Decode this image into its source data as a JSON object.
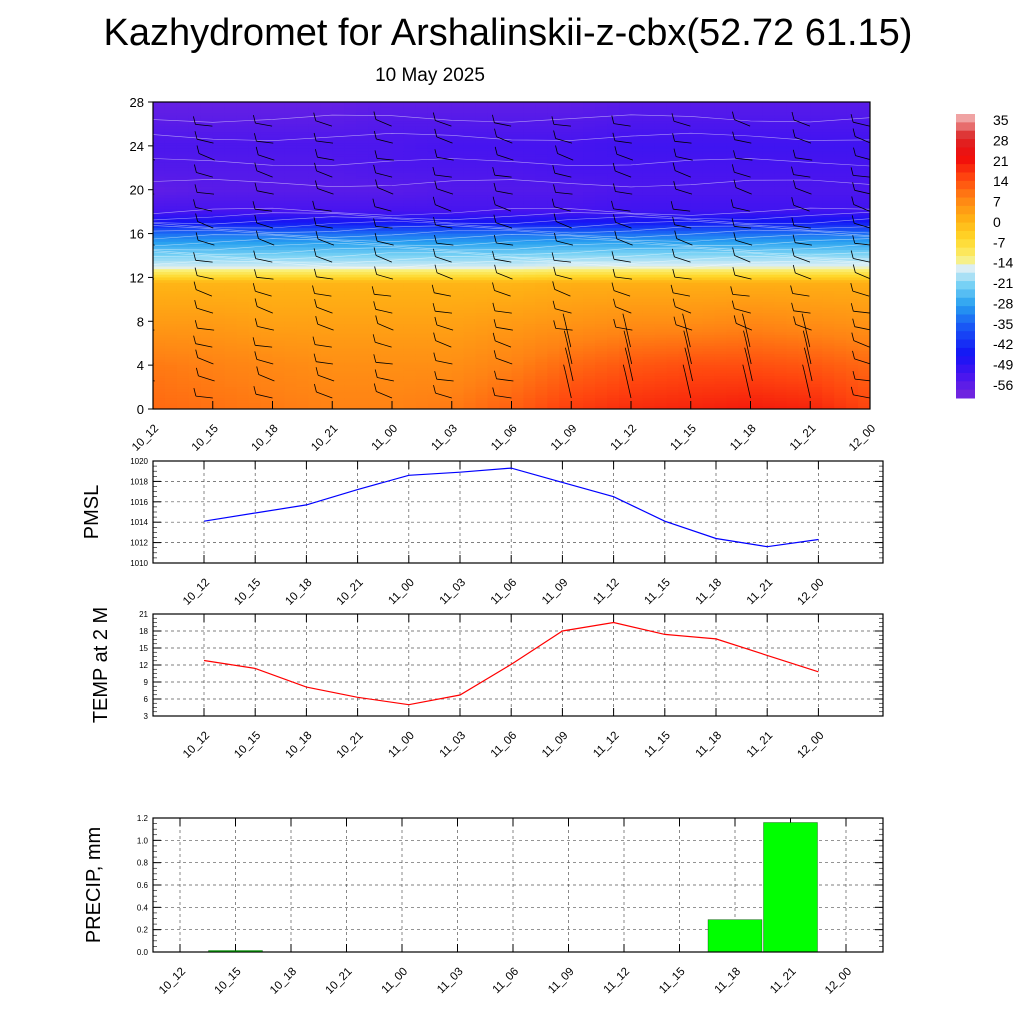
{
  "title": "Kazhydromet for Arshalinskii-z-cbx(52.72 61.15)",
  "subtitle": "10 May 2025",
  "time_labels": [
    "10_12",
    "10_15",
    "10_18",
    "10_21",
    "11_00",
    "11_03",
    "11_06",
    "11_09",
    "11_12",
    "11_15",
    "11_18",
    "11_21",
    "12_00"
  ],
  "chart_data": [
    {
      "type": "heatmap",
      "title": "",
      "xlabel": "",
      "ylabel": "",
      "x": [
        "10_12",
        "10_15",
        "10_18",
        "10_21",
        "11_00",
        "11_03",
        "11_06",
        "11_09",
        "11_12",
        "11_15",
        "11_18",
        "11_21",
        "12_00"
      ],
      "y_ticks": [
        0,
        4,
        8,
        12,
        16,
        20,
        24,
        28
      ],
      "ylim": [
        0,
        28
      ],
      "colorbar": {
        "labels": [
          "35",
          "28",
          "21",
          "14",
          "7",
          "0",
          "-7",
          "-14",
          "-21",
          "-28",
          "-35",
          "-42",
          "-49",
          "-56"
        ],
        "range": [
          -60,
          38
        ]
      },
      "temperature_profile": {
        "heights": [
          0,
          4,
          8,
          11.5,
          12,
          13,
          14,
          16,
          17,
          18,
          20,
          22,
          24,
          26,
          28
        ],
        "values": [
          [
            12,
            10,
            5,
            1,
            -5,
            -16,
            -21,
            -33,
            -45,
            -52,
            -56,
            -54,
            -53,
            -55,
            -57
          ],
          [
            11,
            9,
            5,
            1,
            -5,
            -16,
            -21,
            -33,
            -45,
            -52,
            -55,
            -54,
            -53,
            -55,
            -57
          ],
          [
            10,
            8,
            4,
            1,
            -5,
            -16,
            -21,
            -33,
            -45,
            -52,
            -55,
            -54,
            -53,
            -55,
            -57
          ],
          [
            9,
            7,
            4,
            1,
            -5,
            -16,
            -21,
            -33,
            -45,
            -52,
            -55,
            -54,
            -53,
            -55,
            -57
          ],
          [
            9,
            7,
            4,
            1,
            -5,
            -16,
            -21,
            -33,
            -45,
            -52,
            -55,
            -53,
            -53,
            -54,
            -56
          ],
          [
            10,
            7,
            4,
            1,
            -5,
            -16,
            -21,
            -33,
            -45,
            -52,
            -54,
            -53,
            -52,
            -54,
            -56
          ],
          [
            13,
            9,
            5,
            1,
            -5,
            -16,
            -21,
            -33,
            -45,
            -52,
            -54,
            -53,
            -52,
            -54,
            -56
          ],
          [
            17,
            12,
            6,
            2,
            -4,
            -15,
            -20,
            -33,
            -45,
            -52,
            -54,
            -52,
            -52,
            -54,
            -56
          ],
          [
            19,
            14,
            7,
            2,
            -4,
            -15,
            -20,
            -33,
            -45,
            -51,
            -53,
            -52,
            -51,
            -53,
            -55
          ],
          [
            20,
            15,
            7,
            2,
            -4,
            -15,
            -20,
            -33,
            -44,
            -51,
            -53,
            -52,
            -51,
            -53,
            -55
          ],
          [
            21,
            15,
            8,
            2,
            -4,
            -15,
            -20,
            -33,
            -44,
            -51,
            -53,
            -52,
            -51,
            -53,
            -55
          ],
          [
            20,
            14,
            7,
            2,
            -4,
            -15,
            -20,
            -33,
            -44,
            -51,
            -53,
            -52,
            -51,
            -53,
            -55
          ],
          [
            16,
            12,
            6,
            2,
            -4,
            -15,
            -20,
            -33,
            -44,
            -51,
            -53,
            -52,
            -51,
            -53,
            -55
          ]
        ]
      },
      "wind_barbs": true
    },
    {
      "type": "line",
      "title": "",
      "xlabel": "",
      "ylabel": "PMSL",
      "categories": [
        "10_12",
        "10_15",
        "10_18",
        "10_21",
        "11_00",
        "11_03",
        "11_06",
        "11_09",
        "11_12",
        "11_15",
        "11_18",
        "11_21",
        "12_00"
      ],
      "series": [
        {
          "values": [
            1014.1,
            1014.9,
            1015.7,
            1017.2,
            1018.6,
            1018.9,
            1019.3,
            1017.9,
            1016.5,
            1014.1,
            1012.4,
            1011.6,
            1012.3
          ],
          "color": "#0000ff"
        }
      ],
      "ylim": [
        1010,
        1020
      ],
      "y_ticks": [
        1010,
        1012,
        1014,
        1016,
        1018,
        1020
      ],
      "grid": true
    },
    {
      "type": "line",
      "title": "",
      "xlabel": "",
      "ylabel": "TEMP at 2 M",
      "categories": [
        "10_12",
        "10_15",
        "10_18",
        "10_21",
        "11_00",
        "11_03",
        "11_06",
        "11_09",
        "11_12",
        "11_15",
        "11_18",
        "11_21",
        "12_00"
      ],
      "series": [
        {
          "values": [
            12.8,
            11.4,
            8.1,
            6.3,
            5.0,
            6.7,
            12.1,
            18.0,
            19.5,
            17.4,
            16.6,
            13.7,
            10.8
          ],
          "color": "#ff0000"
        }
      ],
      "ylim": [
        3,
        21
      ],
      "y_ticks": [
        3,
        6,
        9,
        12,
        15,
        18,
        21
      ],
      "grid": true
    },
    {
      "type": "bar",
      "title": "",
      "xlabel": "",
      "ylabel": "PRECIP, mm",
      "categories": [
        "10_12",
        "10_15",
        "10_18",
        "10_21",
        "11_00",
        "11_03",
        "11_06",
        "11_09",
        "11_12",
        "11_15",
        "11_18",
        "11_21",
        "12_00"
      ],
      "values": [
        0,
        0.01,
        0,
        0,
        0,
        0,
        0,
        0,
        0,
        0,
        0.29,
        1.16,
        0
      ],
      "color": "#00ff00",
      "ylim": [
        0,
        1.2
      ],
      "y_ticks": [
        "0.0",
        "0.2",
        "0.4",
        "0.6",
        "0.8",
        "1.0",
        "1.2"
      ],
      "grid": true
    }
  ]
}
